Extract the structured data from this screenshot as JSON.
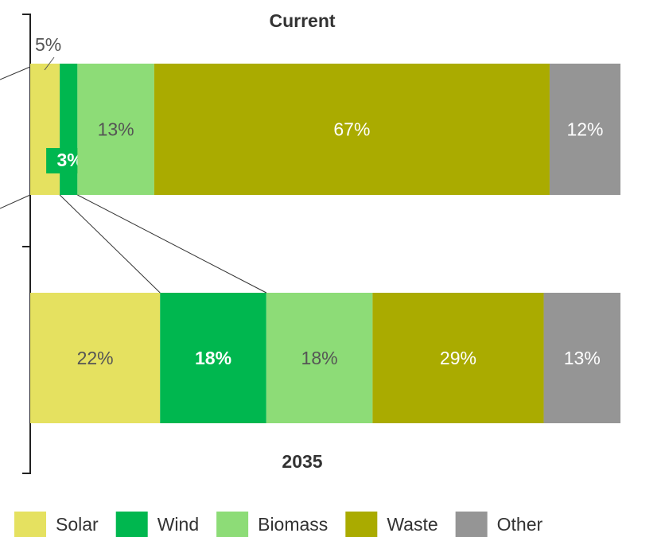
{
  "chart_data": {
    "type": "stacked_bar_horizontal",
    "categories": [
      "Current",
      "2035"
    ],
    "xlim": [
      0,
      100
    ],
    "series": [
      {
        "name": "Solar",
        "color": "#e5e160",
        "values": [
          5,
          22
        ],
        "value_labels": [
          "5%",
          "22%"
        ]
      },
      {
        "name": "Wind",
        "color": "#00b74f",
        "values": [
          3,
          18
        ],
        "value_labels": [
          "3%",
          "18%"
        ]
      },
      {
        "name": "Biomass",
        "color": "#8ddc77",
        "values": [
          13,
          18
        ],
        "value_labels": [
          "13%",
          "18%"
        ]
      },
      {
        "name": "Waste",
        "color": "#aaab00",
        "values": [
          67,
          29
        ],
        "value_labels": [
          "67%",
          "29%"
        ]
      },
      {
        "name": "Other",
        "color": "#959595",
        "values": [
          12,
          13
        ],
        "value_labels": [
          "12%",
          "13%"
        ]
      }
    ],
    "legend": "bottom"
  }
}
